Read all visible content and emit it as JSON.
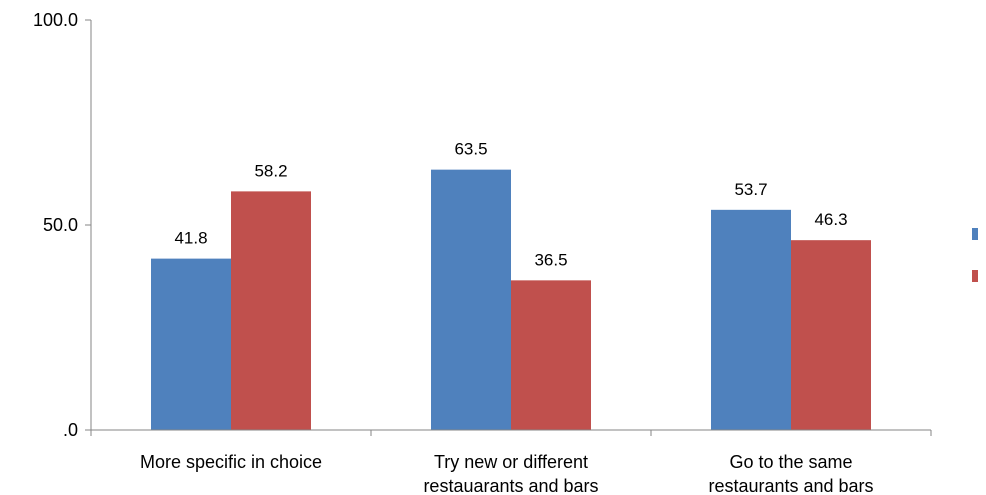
{
  "chart_data": {
    "type": "bar",
    "title": "",
    "xlabel": "",
    "ylabel": "",
    "ylim": [
      0,
      100
    ],
    "y_ticks": [
      ".0",
      "50.0",
      "100.0"
    ],
    "y_tick_values": [
      0,
      50,
      100
    ],
    "grid": false,
    "legend_position": "right",
    "categories": [
      [
        "More specific in choice"
      ],
      [
        "Try new or different",
        "restauarants and bars"
      ],
      [
        "Go to the same",
        "restaurants and bars"
      ]
    ],
    "series": [
      {
        "color": "#4F81BD",
        "values": [
          41.8,
          63.5,
          53.7
        ],
        "labels": [
          "41.8",
          "63.5",
          "53.7"
        ]
      },
      {
        "color": "#C0504D",
        "values": [
          58.2,
          36.5,
          46.3
        ],
        "labels": [
          "58.2",
          "36.5",
          "46.3"
        ]
      }
    ]
  }
}
